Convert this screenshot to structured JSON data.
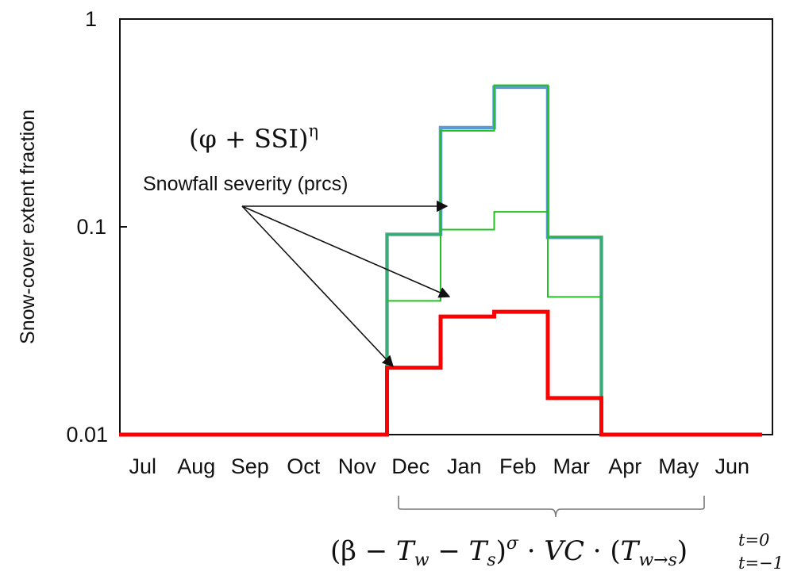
{
  "chart_data": {
    "type": "line",
    "ylabel": "Snow-cover extent fraction",
    "y_scale": "log",
    "ylim": [
      0.01,
      1
    ],
    "y_ticks": [
      "1",
      "0.1",
      "0.01"
    ],
    "categories": [
      "Jul",
      "Aug",
      "Sep",
      "Oct",
      "Nov",
      "Dec",
      "Jan",
      "Feb",
      "Mar",
      "Apr",
      "May",
      "Jun"
    ],
    "series": [
      {
        "color": "#5b9bd5",
        "values": [
          0.01,
          0.01,
          0.01,
          0.01,
          0.01,
          0.092,
          0.3,
          0.47,
          0.089,
          0.01,
          0.01,
          0.01
        ]
      },
      {
        "color": "#22c022",
        "values": [
          0.01,
          0.01,
          0.01,
          0.01,
          0.01,
          0.044,
          0.097,
          0.118,
          0.046,
          0.01,
          0.01,
          0.01
        ]
      },
      {
        "color": "#22c022",
        "values": [
          0.01,
          0.01,
          0.01,
          0.01,
          0.01,
          0.092,
          0.29,
          0.48,
          0.089,
          0.01,
          0.01,
          0.01
        ]
      },
      {
        "color": "#ff0000",
        "values": [
          0.01,
          0.01,
          0.01,
          0.01,
          0.01,
          0.021,
          0.037,
          0.039,
          0.015,
          0.01,
          0.01,
          0.01
        ]
      }
    ],
    "annotations": {
      "arrow_label": "Snowfall severity (prcs)",
      "top_formula_base": "(φ + SSI)",
      "top_formula_exp": "η",
      "bottom_formula": {
        "part1": "(β − ",
        "tw": "T",
        "tw_sub": "w",
        "minus": " − ",
        "ts": "T",
        "ts_sub": "s",
        "close": ")",
        "sigma": "σ",
        "dot1": " · ",
        "vc": "VC",
        "dot2": " · (",
        "twts": "T",
        "twts_sub": "w→s",
        "close2": ")",
        "sup": "t=0",
        "sub": "t=−1"
      }
    },
    "grid": false
  }
}
